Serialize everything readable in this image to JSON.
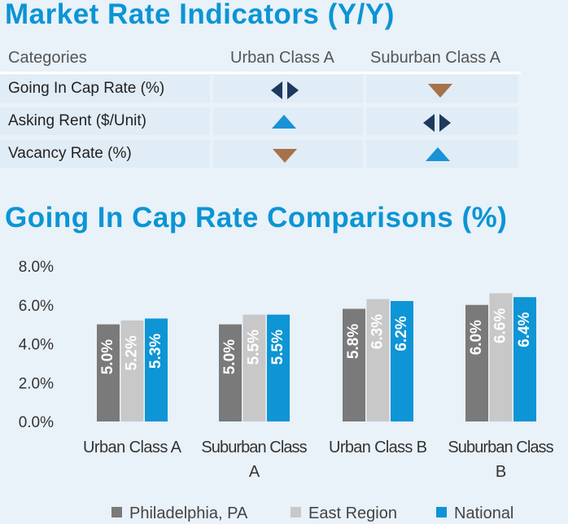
{
  "indicators": {
    "title": "Market Rate Indicators (Y/Y)",
    "headers": [
      "Categories",
      "Urban Class A",
      "Suburban Class A"
    ],
    "rows": [
      {
        "label": "Going In Cap Rate (%)",
        "urban": "flat",
        "suburban": "down"
      },
      {
        "label": "Asking Rent ($/Unit)",
        "urban": "up",
        "suburban": "flat"
      },
      {
        "label": "Vacancy Rate (%)",
        "urban": "down",
        "suburban": "up"
      }
    ]
  },
  "chart_title": "Going In Cap Rate Comparisons (%)",
  "chart_data": {
    "type": "bar",
    "categories": [
      "Urban Class A",
      "Suburban Class A",
      "Urban Class B",
      "Suburban Class B"
    ],
    "category_lines": [
      [
        "Urban Class A"
      ],
      [
        "Suburban Class",
        "A"
      ],
      [
        "Urban Class B"
      ],
      [
        "Suburban Class",
        "B"
      ]
    ],
    "series": [
      {
        "name": "Philadelphia, PA",
        "color": "#7a7a7a",
        "values": [
          5.0,
          5.0,
          5.8,
          6.0
        ],
        "labels": [
          "5.0%",
          "5.0%",
          "5.8%",
          "6.0%"
        ]
      },
      {
        "name": "East Region",
        "color": "#c8c8c8",
        "values": [
          5.2,
          5.5,
          6.3,
          6.6
        ],
        "labels": [
          "5.2%",
          "5.5%",
          "6.3%",
          "6.6%"
        ]
      },
      {
        "name": "National",
        "color": "#0d95d5",
        "values": [
          5.3,
          5.5,
          6.2,
          6.4
        ],
        "labels": [
          "5.3%",
          "5.5%",
          "6.2%",
          "6.4%"
        ]
      }
    ],
    "yticks": [
      "0.0%",
      "2.0%",
      "4.0%",
      "6.0%",
      "8.0%"
    ],
    "ylim": [
      0,
      8
    ],
    "legend_position": "bottom",
    "grid": false
  },
  "colors": {
    "title": "#0a95d4",
    "up": "#1a93d6",
    "down": "#a5724a",
    "flat": "#1d3a5e"
  }
}
